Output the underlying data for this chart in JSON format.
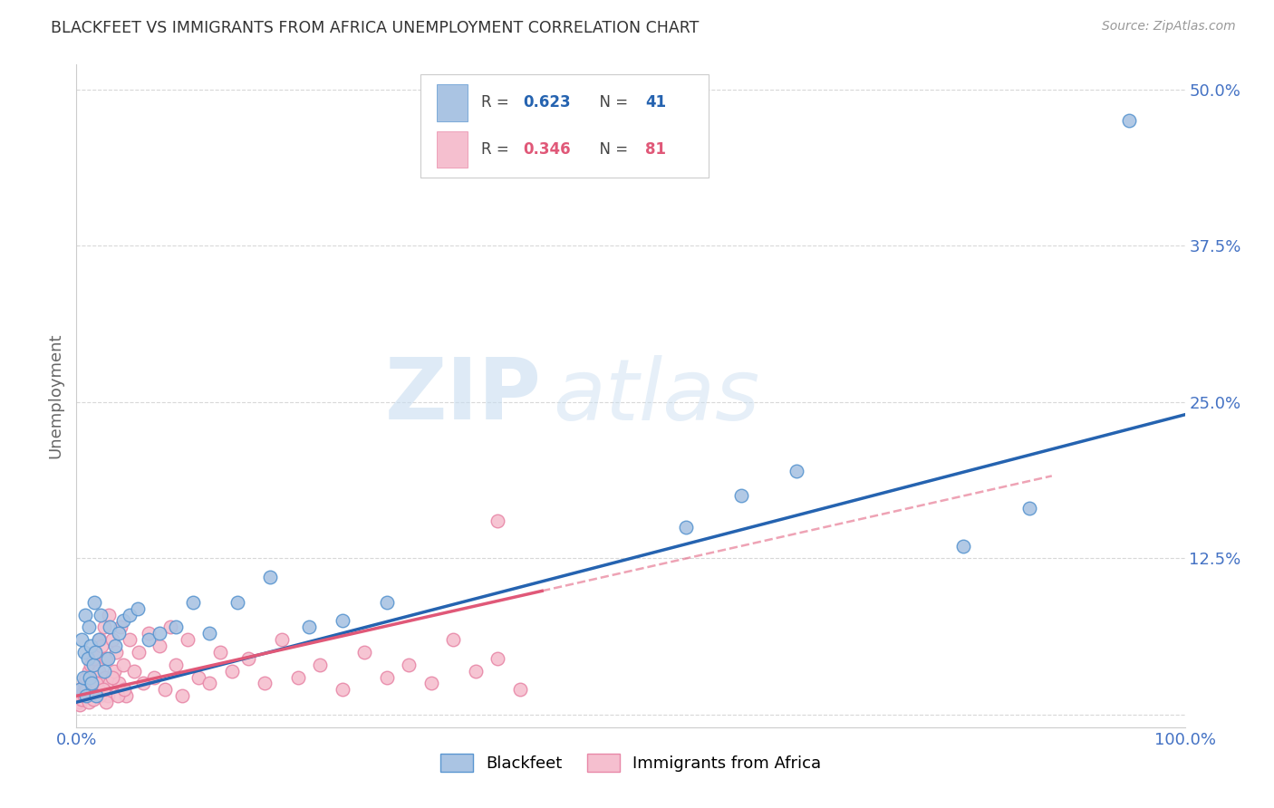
{
  "title": "BLACKFEET VS IMMIGRANTS FROM AFRICA UNEMPLOYMENT CORRELATION CHART",
  "source": "Source: ZipAtlas.com",
  "ylabel": "Unemployment",
  "xlim": [
    0,
    1.0
  ],
  "ylim": [
    -0.01,
    0.52
  ],
  "xticks": [
    0.0,
    0.2,
    0.4,
    0.6,
    0.8,
    1.0
  ],
  "xticklabels": [
    "0.0%",
    "",
    "",
    "",
    "",
    "100.0%"
  ],
  "yticks": [
    0.0,
    0.125,
    0.25,
    0.375,
    0.5
  ],
  "yticklabels": [
    "",
    "12.5%",
    "25.0%",
    "37.5%",
    "50.0%"
  ],
  "blackfeet_color": "#aac4e3",
  "blackfeet_edge_color": "#5a96d0",
  "blackfeet_line_color": "#2563b0",
  "immigrants_color": "#f5bfcf",
  "immigrants_edge_color": "#e888a8",
  "immigrants_line_color": "#e05878",
  "R_blackfeet": 0.623,
  "N_blackfeet": 41,
  "R_immigrants": 0.346,
  "N_immigrants": 81,
  "blackfeet_x": [
    0.003,
    0.005,
    0.006,
    0.007,
    0.008,
    0.009,
    0.01,
    0.011,
    0.012,
    0.013,
    0.014,
    0.015,
    0.016,
    0.017,
    0.018,
    0.02,
    0.022,
    0.025,
    0.028,
    0.03,
    0.035,
    0.038,
    0.042,
    0.048,
    0.055,
    0.065,
    0.075,
    0.09,
    0.105,
    0.12,
    0.145,
    0.175,
    0.21,
    0.24,
    0.28,
    0.55,
    0.6,
    0.65,
    0.8,
    0.86,
    0.95
  ],
  "blackfeet_y": [
    0.02,
    0.06,
    0.03,
    0.05,
    0.08,
    0.015,
    0.045,
    0.07,
    0.03,
    0.055,
    0.025,
    0.04,
    0.09,
    0.05,
    0.015,
    0.06,
    0.08,
    0.035,
    0.045,
    0.07,
    0.055,
    0.065,
    0.075,
    0.08,
    0.085,
    0.06,
    0.065,
    0.07,
    0.09,
    0.065,
    0.09,
    0.11,
    0.07,
    0.075,
    0.09,
    0.15,
    0.175,
    0.195,
    0.135,
    0.165,
    0.475
  ],
  "immigrants_x": [
    0.002,
    0.003,
    0.004,
    0.005,
    0.006,
    0.007,
    0.008,
    0.009,
    0.01,
    0.011,
    0.012,
    0.013,
    0.014,
    0.015,
    0.016,
    0.017,
    0.018,
    0.019,
    0.02,
    0.021,
    0.022,
    0.023,
    0.024,
    0.025,
    0.026,
    0.027,
    0.028,
    0.029,
    0.03,
    0.032,
    0.034,
    0.036,
    0.038,
    0.04,
    0.042,
    0.045,
    0.048,
    0.052,
    0.056,
    0.06,
    0.065,
    0.07,
    0.075,
    0.08,
    0.085,
    0.09,
    0.095,
    0.1,
    0.11,
    0.12,
    0.13,
    0.14,
    0.155,
    0.17,
    0.185,
    0.2,
    0.22,
    0.24,
    0.26,
    0.28,
    0.3,
    0.32,
    0.34,
    0.36,
    0.38,
    0.4,
    0.003,
    0.005,
    0.007,
    0.009,
    0.011,
    0.013,
    0.015,
    0.018,
    0.021,
    0.024,
    0.027,
    0.032,
    0.037,
    0.043,
    0.38
  ],
  "immigrants_y": [
    0.01,
    0.015,
    0.02,
    0.012,
    0.018,
    0.025,
    0.015,
    0.03,
    0.02,
    0.035,
    0.025,
    0.04,
    0.015,
    0.045,
    0.02,
    0.05,
    0.03,
    0.015,
    0.035,
    0.06,
    0.025,
    0.055,
    0.02,
    0.07,
    0.03,
    0.045,
    0.015,
    0.08,
    0.025,
    0.06,
    0.035,
    0.05,
    0.025,
    0.07,
    0.04,
    0.015,
    0.06,
    0.035,
    0.05,
    0.025,
    0.065,
    0.03,
    0.055,
    0.02,
    0.07,
    0.04,
    0.015,
    0.06,
    0.03,
    0.025,
    0.05,
    0.035,
    0.045,
    0.025,
    0.06,
    0.03,
    0.04,
    0.02,
    0.05,
    0.03,
    0.04,
    0.025,
    0.06,
    0.035,
    0.045,
    0.02,
    0.008,
    0.012,
    0.015,
    0.02,
    0.01,
    0.018,
    0.012,
    0.025,
    0.015,
    0.02,
    0.01,
    0.03,
    0.015,
    0.02,
    0.155
  ],
  "watermark_zip": "ZIP",
  "watermark_atlas": "atlas",
  "background_color": "#ffffff",
  "grid_color": "#d8d8d8",
  "title_color": "#333333",
  "axis_label_color": "#666666",
  "tick_color": "#4472c4",
  "source_color": "#999999"
}
